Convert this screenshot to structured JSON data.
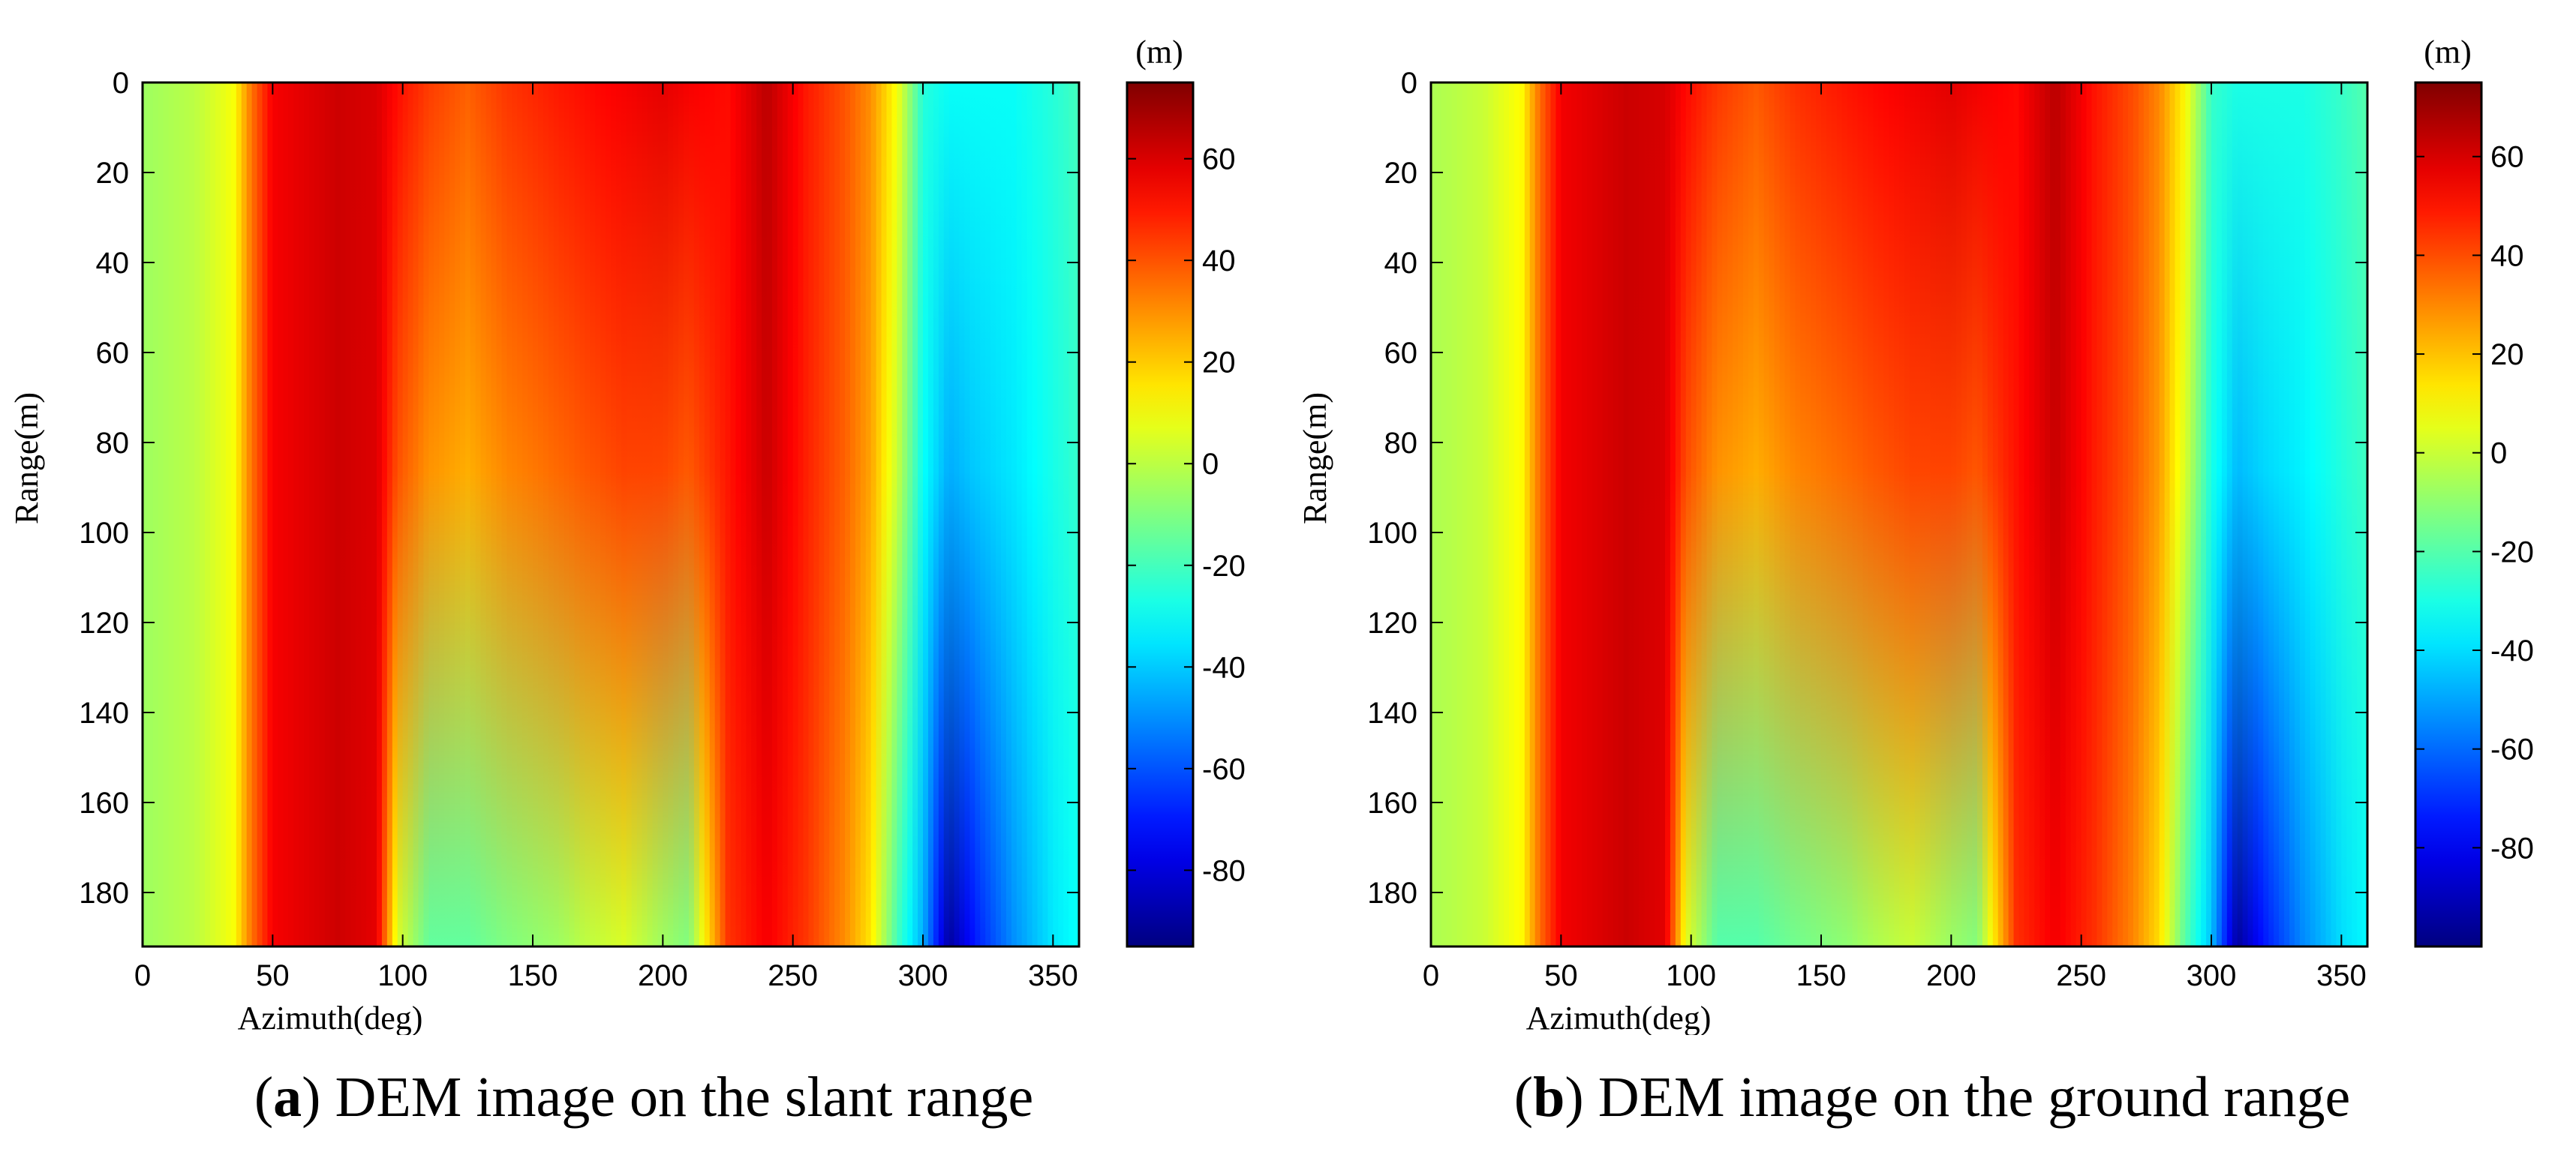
{
  "chart_data": [
    {
      "type": "heatmap",
      "id": "a",
      "caption_label": "a",
      "caption_text": "DEM image on the slant range",
      "xlabel": "Azimuth(deg)",
      "ylabel": "Range(m)",
      "colorbar_unit": "(m)",
      "xlim": [
        0,
        360
      ],
      "ylim": [
        0,
        192
      ],
      "xticks": [
        0,
        50,
        100,
        150,
        200,
        250,
        300,
        350
      ],
      "yticks": [
        0,
        20,
        40,
        60,
        80,
        100,
        120,
        140,
        160,
        180
      ],
      "clim": [
        -95,
        75
      ],
      "cticks": [
        60,
        40,
        20,
        0,
        -20,
        -40,
        -60,
        -80
      ],
      "profile_azimuth": [
        0,
        20,
        35,
        42,
        50,
        75,
        90,
        98,
        110,
        125,
        140,
        160,
        170,
        185,
        200,
        210,
        225,
        240,
        255,
        270,
        280,
        290,
        300,
        310,
        320,
        335,
        350,
        360
      ],
      "profile_top": [
        -5,
        0,
        10,
        35,
        55,
        62,
        60,
        52,
        44,
        38,
        45,
        50,
        52,
        55,
        58,
        55,
        52,
        65,
        50,
        40,
        30,
        10,
        -25,
        -30,
        -30,
        -30,
        -25,
        -20
      ],
      "profile_bottom": [
        -5,
        0,
        10,
        35,
        55,
        62,
        58,
        5,
        -15,
        -15,
        -10,
        -5,
        0,
        5,
        -5,
        -10,
        45,
        55,
        45,
        30,
        15,
        -20,
        -45,
        -90,
        -70,
        -50,
        -35,
        -30
      ]
    },
    {
      "type": "heatmap",
      "id": "b",
      "caption_label": "b",
      "caption_text": "DEM image on the ground range",
      "xlabel": "Azimuth(deg)",
      "ylabel": "Range(m)",
      "colorbar_unit": "(m)",
      "xlim": [
        0,
        360
      ],
      "ylim": [
        0,
        192
      ],
      "xticks": [
        0,
        50,
        100,
        150,
        200,
        250,
        300,
        350
      ],
      "yticks": [
        0,
        20,
        40,
        60,
        80,
        100,
        120,
        140,
        160,
        180
      ],
      "clim": [
        -100,
        75
      ],
      "cticks": [
        60,
        40,
        20,
        0,
        -20,
        -40,
        -60,
        -80
      ],
      "profile_azimuth": [
        0,
        20,
        35,
        42,
        50,
        75,
        90,
        98,
        110,
        125,
        140,
        160,
        170,
        185,
        200,
        210,
        225,
        240,
        255,
        270,
        280,
        290,
        300,
        310,
        320,
        335,
        350,
        360
      ],
      "profile_top": [
        -5,
        0,
        10,
        35,
        55,
        62,
        60,
        52,
        44,
        38,
        45,
        50,
        52,
        55,
        58,
        55,
        52,
        65,
        50,
        40,
        30,
        10,
        -25,
        -30,
        -30,
        -30,
        -25,
        -20
      ],
      "profile_bottom": [
        -5,
        0,
        10,
        35,
        55,
        62,
        58,
        5,
        -20,
        -20,
        -15,
        -10,
        -5,
        0,
        -8,
        -12,
        45,
        55,
        45,
        30,
        15,
        -20,
        -45,
        -95,
        -75,
        -55,
        -40,
        -35
      ]
    }
  ]
}
